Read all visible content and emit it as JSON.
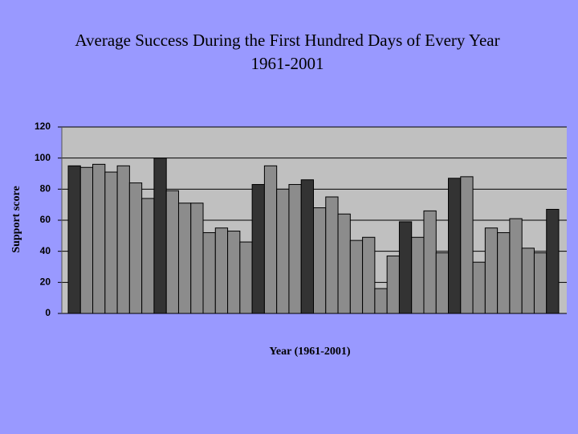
{
  "chart_data": {
    "type": "bar",
    "title": "Average Success During the First Hundred Days of Every Year",
    "subtitle": "1961-2001",
    "ylabel": "Support score",
    "xlabel": "Year (1961-2001)",
    "categories": [
      null,
      null,
      null,
      null,
      null,
      null,
      null,
      null,
      null,
      null,
      null,
      null,
      null,
      null,
      null,
      null,
      null,
      null,
      null,
      null,
      null,
      null,
      null,
      null,
      null,
      null,
      null,
      null,
      null,
      null,
      null,
      null,
      null,
      null,
      null,
      null,
      null,
      null,
      null,
      null
    ],
    "values": [
      95,
      94,
      96,
      91,
      95,
      84,
      74,
      100,
      79,
      71,
      71,
      52,
      55,
      53,
      46,
      83,
      95,
      80,
      83,
      86,
      68,
      75,
      64,
      47,
      49,
      16,
      37,
      59,
      49,
      66,
      39,
      87,
      88,
      33,
      55,
      52,
      61,
      42,
      39,
      67
    ],
    "colors": [
      "#333333",
      "#8c8c8c",
      "#8c8c8c",
      "#8c8c8c",
      "#8c8c8c",
      "#8c8c8c",
      "#8c8c8c",
      "#333333",
      "#8c8c8c",
      "#8c8c8c",
      "#8c8c8c",
      "#8c8c8c",
      "#8c8c8c",
      "#8c8c8c",
      "#8c8c8c",
      "#333333",
      "#8c8c8c",
      "#8c8c8c",
      "#8c8c8c",
      "#333333",
      "#8c8c8c",
      "#8c8c8c",
      "#8c8c8c",
      "#8c8c8c",
      "#8c8c8c",
      "#8c8c8c",
      "#8c8c8c",
      "#333333",
      "#8c8c8c",
      "#8c8c8c",
      "#8c8c8c",
      "#333333",
      "#8c8c8c",
      "#8c8c8c",
      "#8c8c8c",
      "#8c8c8c",
      "#8c8c8c",
      "#8c8c8c",
      "#8c8c8c",
      "#333333"
    ],
    "ylim": [
      0,
      120
    ],
    "yticks": [
      0,
      20,
      40,
      60,
      80,
      100,
      120
    ],
    "grid": true
  }
}
